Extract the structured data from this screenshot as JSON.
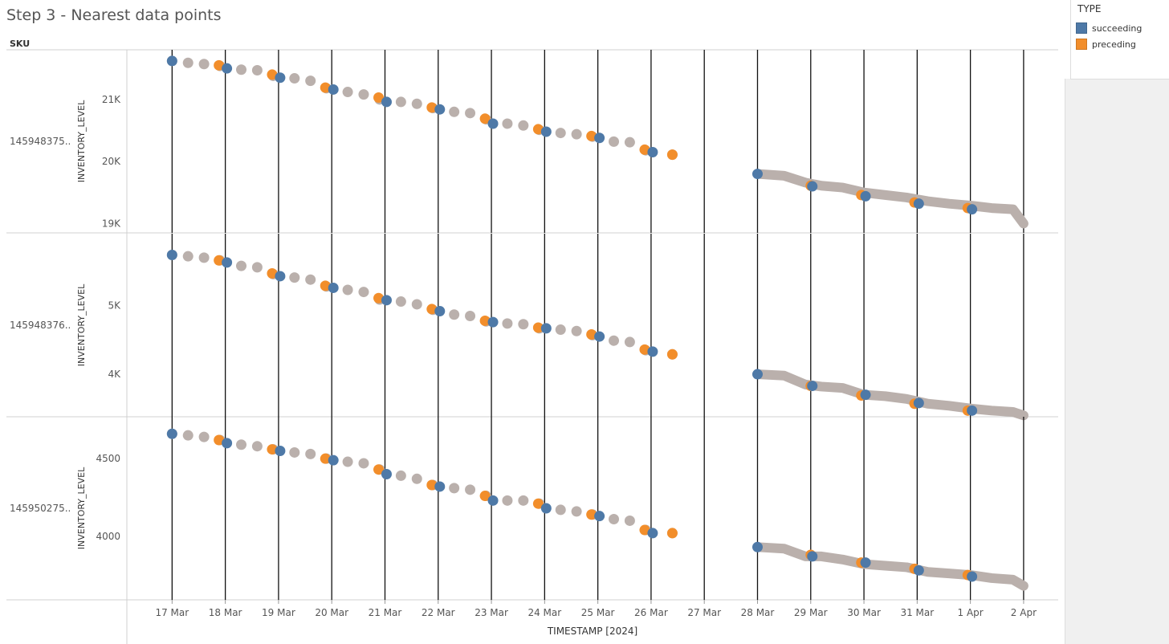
{
  "title": "Step 3 - Nearest data points",
  "legend": {
    "title": "TYPE",
    "items": [
      {
        "label": "succeeding",
        "color": "#4e79a7"
      },
      {
        "label": "preceding",
        "color": "#f28e2b"
      }
    ]
  },
  "colors": {
    "trend": "#bab0ac",
    "succeeding": "#4e79a7",
    "preceding": "#f28e2b"
  },
  "chart_data": {
    "type": "scatter",
    "title": "Step 3 - Nearest data points",
    "row_header": "SKU",
    "xlabel": "TIMESTAMP [2024]",
    "x_ticks": [
      "17 Mar",
      "18 Mar",
      "19 Mar",
      "20 Mar",
      "21 Mar",
      "22 Mar",
      "23 Mar",
      "24 Mar",
      "25 Mar",
      "26 Mar",
      "27 Mar",
      "28 Mar",
      "29 Mar",
      "30 Mar",
      "31 Mar",
      "1 Apr",
      "2 Apr"
    ],
    "xlim": [
      -0.85,
      16.65
    ],
    "reference_lines_x": [
      0,
      1,
      2,
      3,
      4,
      5,
      6,
      7,
      8,
      9,
      10,
      11,
      12,
      13,
      14,
      15,
      16
    ],
    "panels": [
      {
        "sku": "145948375..",
        "ylabel": "INVENTORY_LEVEL",
        "y_ticks": [
          19000,
          20000,
          21000
        ],
        "y_tick_labels": [
          "19K",
          "20K",
          "21K"
        ],
        "ylim": [
          18850,
          21800
        ],
        "dots": [
          [
            0,
            21620
          ],
          [
            0.3,
            21590
          ],
          [
            0.6,
            21570
          ],
          [
            0.9,
            21540
          ],
          [
            1.3,
            21480
          ],
          [
            1.6,
            21470
          ],
          [
            1.9,
            21380
          ],
          [
            2.3,
            21340
          ],
          [
            2.6,
            21300
          ],
          [
            2.9,
            21180
          ],
          [
            3.3,
            21120
          ],
          [
            3.6,
            21080
          ],
          [
            3.9,
            21000
          ],
          [
            4.3,
            20960
          ],
          [
            4.6,
            20930
          ],
          [
            4.9,
            20860
          ],
          [
            5.3,
            20800
          ],
          [
            5.6,
            20780
          ],
          [
            5.9,
            20680
          ],
          [
            6.3,
            20610
          ],
          [
            6.6,
            20580
          ],
          [
            6.9,
            20510
          ],
          [
            7.3,
            20460
          ],
          [
            7.6,
            20440
          ],
          [
            7.9,
            20400
          ],
          [
            8.3,
            20320
          ],
          [
            8.6,
            20310
          ],
          [
            8.9,
            20180
          ],
          [
            9.4,
            20110
          ]
        ],
        "preceding": [
          [
            0.88,
            21550
          ],
          [
            1.88,
            21400
          ],
          [
            2.88,
            21190
          ],
          [
            3.88,
            21030
          ],
          [
            4.88,
            20870
          ],
          [
            5.88,
            20690
          ],
          [
            6.88,
            20520
          ],
          [
            7.88,
            20410
          ],
          [
            8.88,
            20190
          ],
          [
            9.4,
            20110
          ]
        ],
        "succeeding": [
          [
            0,
            21620
          ],
          [
            1.03,
            21500
          ],
          [
            2.03,
            21350
          ],
          [
            3.03,
            21160
          ],
          [
            4.03,
            20960
          ],
          [
            5.03,
            20840
          ],
          [
            6.03,
            20610
          ],
          [
            7.03,
            20480
          ],
          [
            8.03,
            20380
          ],
          [
            9.03,
            20150
          ]
        ],
        "trend": [
          [
            11,
            19800
          ],
          [
            11.5,
            19770
          ],
          [
            11.9,
            19660
          ],
          [
            12.2,
            19610
          ],
          [
            12.6,
            19580
          ],
          [
            13,
            19500
          ],
          [
            13.4,
            19460
          ],
          [
            13.8,
            19420
          ],
          [
            14.2,
            19360
          ],
          [
            14.6,
            19320
          ],
          [
            15,
            19290
          ],
          [
            15.4,
            19250
          ],
          [
            15.8,
            19230
          ],
          [
            16,
            19000
          ]
        ],
        "preceding_tail": [
          [
            12,
            19610
          ],
          [
            12.95,
            19460
          ],
          [
            13.95,
            19340
          ],
          [
            14.95,
            19250
          ]
        ],
        "succeeding_tail": [
          [
            11,
            19800
          ],
          [
            12.03,
            19600
          ],
          [
            13.03,
            19440
          ],
          [
            14.03,
            19320
          ],
          [
            15.03,
            19230
          ]
        ]
      },
      {
        "sku": "145948376..",
        "ylabel": "INVENTORY_LEVEL",
        "y_ticks": [
          4000,
          5000
        ],
        "y_tick_labels": [
          "4K",
          "5K"
        ],
        "ylim": [
          3380,
          6050
        ],
        "dots": [
          [
            0,
            5740
          ],
          [
            0.3,
            5720
          ],
          [
            0.6,
            5700
          ],
          [
            0.9,
            5660
          ],
          [
            1.3,
            5580
          ],
          [
            1.6,
            5560
          ],
          [
            1.9,
            5460
          ],
          [
            2.3,
            5410
          ],
          [
            2.6,
            5380
          ],
          [
            2.9,
            5280
          ],
          [
            3.3,
            5230
          ],
          [
            3.6,
            5200
          ],
          [
            3.9,
            5090
          ],
          [
            4.3,
            5060
          ],
          [
            4.6,
            5020
          ],
          [
            4.9,
            4940
          ],
          [
            5.3,
            4870
          ],
          [
            5.6,
            4850
          ],
          [
            5.9,
            4770
          ],
          [
            6.3,
            4740
          ],
          [
            6.6,
            4730
          ],
          [
            6.9,
            4670
          ],
          [
            7.3,
            4650
          ],
          [
            7.6,
            4630
          ],
          [
            7.9,
            4570
          ],
          [
            8.3,
            4490
          ],
          [
            8.6,
            4470
          ],
          [
            8.9,
            4350
          ],
          [
            9.4,
            4290
          ]
        ],
        "preceding": [
          [
            0.88,
            5660
          ],
          [
            1.88,
            5470
          ],
          [
            2.88,
            5290
          ],
          [
            3.88,
            5110
          ],
          [
            4.88,
            4950
          ],
          [
            5.88,
            4780
          ],
          [
            6.88,
            4680
          ],
          [
            7.88,
            4580
          ],
          [
            8.88,
            4360
          ],
          [
            9.4,
            4290
          ]
        ],
        "succeeding": [
          [
            0,
            5740
          ],
          [
            1.03,
            5630
          ],
          [
            2.03,
            5430
          ],
          [
            3.03,
            5260
          ],
          [
            4.03,
            5080
          ],
          [
            5.03,
            4920
          ],
          [
            6.03,
            4760
          ],
          [
            7.03,
            4670
          ],
          [
            8.03,
            4550
          ],
          [
            9.03,
            4330
          ]
        ],
        "trend": [
          [
            11,
            4000
          ],
          [
            11.5,
            3980
          ],
          [
            11.9,
            3850
          ],
          [
            12.2,
            3820
          ],
          [
            12.6,
            3800
          ],
          [
            13,
            3700
          ],
          [
            13.4,
            3680
          ],
          [
            13.8,
            3640
          ],
          [
            14.2,
            3570
          ],
          [
            14.6,
            3540
          ],
          [
            15,
            3500
          ],
          [
            15.4,
            3470
          ],
          [
            15.8,
            3450
          ],
          [
            16,
            3400
          ]
        ],
        "preceding_tail": [
          [
            12,
            3830
          ],
          [
            12.95,
            3690
          ],
          [
            13.95,
            3570
          ],
          [
            14.95,
            3470
          ]
        ],
        "succeeding_tail": [
          [
            11,
            4000
          ],
          [
            12.03,
            3830
          ],
          [
            13.03,
            3700
          ],
          [
            14.03,
            3580
          ],
          [
            15.03,
            3470
          ]
        ]
      },
      {
        "sku": "145950275..",
        "ylabel": "INVENTORY_LEVEL",
        "y_ticks": [
          4000,
          4500
        ],
        "y_tick_labels": [
          "4000",
          "4500"
        ],
        "ylim": [
          3590,
          4770
        ],
        "dots": [
          [
            0,
            4660
          ],
          [
            0.3,
            4650
          ],
          [
            0.6,
            4640
          ],
          [
            0.9,
            4620
          ],
          [
            1.3,
            4590
          ],
          [
            1.6,
            4580
          ],
          [
            1.9,
            4560
          ],
          [
            2.3,
            4540
          ],
          [
            2.6,
            4530
          ],
          [
            2.9,
            4500
          ],
          [
            3.3,
            4480
          ],
          [
            3.6,
            4470
          ],
          [
            3.9,
            4430
          ],
          [
            4.3,
            4390
          ],
          [
            4.6,
            4370
          ],
          [
            4.9,
            4330
          ],
          [
            5.3,
            4310
          ],
          [
            5.6,
            4300
          ],
          [
            5.9,
            4260
          ],
          [
            6.3,
            4230
          ],
          [
            6.6,
            4230
          ],
          [
            6.9,
            4210
          ],
          [
            7.3,
            4170
          ],
          [
            7.6,
            4160
          ],
          [
            7.9,
            4140
          ],
          [
            8.3,
            4110
          ],
          [
            8.6,
            4100
          ],
          [
            8.9,
            4040
          ],
          [
            9.4,
            4020
          ]
        ],
        "preceding": [
          [
            0.88,
            4620
          ],
          [
            1.88,
            4560
          ],
          [
            2.88,
            4500
          ],
          [
            3.88,
            4430
          ],
          [
            4.88,
            4330
          ],
          [
            5.88,
            4260
          ],
          [
            6.88,
            4210
          ],
          [
            7.88,
            4140
          ],
          [
            8.88,
            4040
          ],
          [
            9.4,
            4020
          ]
        ],
        "succeeding": [
          [
            0,
            4660
          ],
          [
            1.03,
            4600
          ],
          [
            2.03,
            4550
          ],
          [
            3.03,
            4490
          ],
          [
            4.03,
            4400
          ],
          [
            5.03,
            4320
          ],
          [
            6.03,
            4230
          ],
          [
            7.03,
            4180
          ],
          [
            8.03,
            4130
          ],
          [
            9.03,
            4020
          ]
        ],
        "trend": [
          [
            11,
            3930
          ],
          [
            11.5,
            3920
          ],
          [
            11.9,
            3870
          ],
          [
            12.2,
            3870
          ],
          [
            12.6,
            3850
          ],
          [
            13,
            3820
          ],
          [
            13.4,
            3810
          ],
          [
            13.8,
            3800
          ],
          [
            14.2,
            3770
          ],
          [
            14.6,
            3760
          ],
          [
            15,
            3750
          ],
          [
            15.4,
            3730
          ],
          [
            15.8,
            3720
          ],
          [
            16,
            3680
          ]
        ],
        "preceding_tail": [
          [
            12,
            3880
          ],
          [
            12.95,
            3830
          ],
          [
            13.95,
            3790
          ],
          [
            14.95,
            3750
          ]
        ],
        "succeeding_tail": [
          [
            11,
            3930
          ],
          [
            12.03,
            3870
          ],
          [
            13.03,
            3830
          ],
          [
            14.03,
            3780
          ],
          [
            15.03,
            3740
          ]
        ]
      }
    ]
  }
}
